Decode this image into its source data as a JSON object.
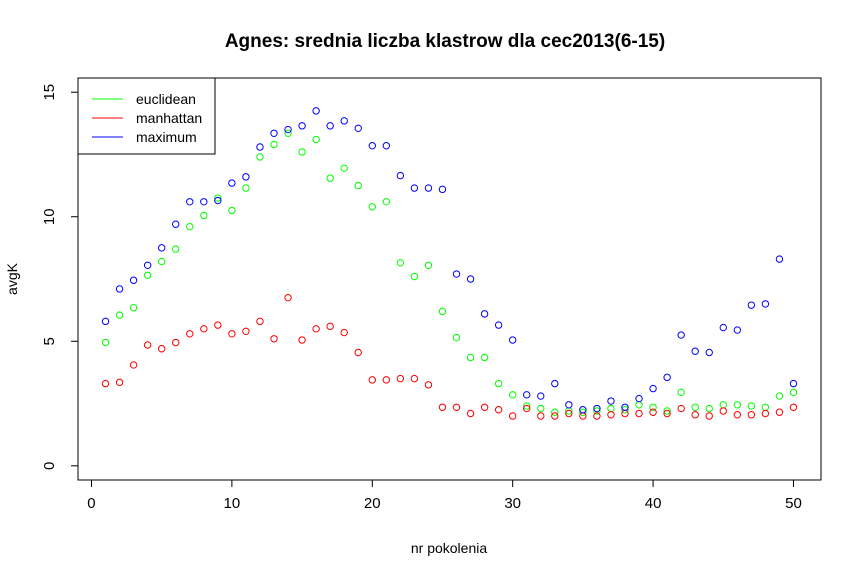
{
  "chart_data": {
    "type": "scatter",
    "title": "Agnes: srednia liczba klastrow dla cec2013(6-15)",
    "xlabel": "nr pokolenia",
    "ylabel": "avgK",
    "xlim": [
      -0.96,
      51.96
    ],
    "ylim": [
      -0.57,
      15.57
    ],
    "xticks": [
      0,
      10,
      20,
      30,
      40,
      50
    ],
    "yticks": [
      0,
      5,
      10,
      15
    ],
    "legend_position": "top-left",
    "series": [
      {
        "name": "euclidean",
        "color": "#00ff00",
        "x": [
          1,
          2,
          3,
          4,
          5,
          6,
          7,
          8,
          9,
          10,
          11,
          12,
          13,
          14,
          15,
          16,
          17,
          18,
          19,
          20,
          21,
          22,
          23,
          24,
          25,
          26,
          27,
          28,
          29,
          30,
          31,
          32,
          33,
          34,
          35,
          36,
          37,
          38,
          39,
          40,
          41,
          42,
          43,
          44,
          45,
          46,
          47,
          48,
          49,
          50
        ],
        "y": [
          4.95,
          6.05,
          6.35,
          7.65,
          8.2,
          8.7,
          9.6,
          10.05,
          10.75,
          10.25,
          11.15,
          12.4,
          12.9,
          13.35,
          12.6,
          13.1,
          11.55,
          11.95,
          11.25,
          10.4,
          10.6,
          8.15,
          7.6,
          8.05,
          6.2,
          5.15,
          4.35,
          4.35,
          3.3,
          2.85,
          2.4,
          2.3,
          2.15,
          2.2,
          2.15,
          2.2,
          2.3,
          2.25,
          2.45,
          2.35,
          2.2,
          2.95,
          2.35,
          2.3,
          2.45,
          2.45,
          2.4,
          2.35,
          2.8,
          2.95
        ]
      },
      {
        "name": "manhattan",
        "color": "#ff0000",
        "x": [
          1,
          2,
          3,
          4,
          5,
          6,
          7,
          8,
          9,
          10,
          11,
          12,
          13,
          14,
          15,
          16,
          17,
          18,
          19,
          20,
          21,
          22,
          23,
          24,
          25,
          26,
          27,
          28,
          29,
          30,
          31,
          32,
          33,
          34,
          35,
          36,
          37,
          38,
          39,
          40,
          41,
          42,
          43,
          44,
          45,
          46,
          47,
          48,
          49,
          50
        ],
        "y": [
          3.3,
          3.35,
          4.05,
          4.85,
          4.7,
          4.95,
          5.3,
          5.5,
          5.65,
          5.3,
          5.4,
          5.8,
          5.1,
          6.75,
          5.05,
          5.5,
          5.6,
          5.35,
          4.55,
          3.45,
          3.45,
          3.5,
          3.5,
          3.25,
          2.35,
          2.35,
          2.1,
          2.35,
          2.25,
          2.0,
          2.3,
          2.0,
          2.0,
          2.1,
          2.0,
          2.0,
          2.05,
          2.1,
          2.1,
          2.15,
          2.1,
          2.3,
          2.05,
          2.0,
          2.2,
          2.05,
          2.05,
          2.1,
          2.15,
          2.35
        ]
      },
      {
        "name": "maximum",
        "color": "#0000ff",
        "x": [
          1,
          2,
          3,
          4,
          5,
          6,
          7,
          8,
          9,
          10,
          11,
          12,
          13,
          14,
          15,
          16,
          17,
          18,
          19,
          20,
          21,
          22,
          23,
          24,
          25,
          26,
          27,
          28,
          29,
          30,
          31,
          32,
          33,
          34,
          35,
          36,
          37,
          38,
          39,
          40,
          41,
          42,
          43,
          44,
          45,
          46,
          47,
          48,
          49,
          50
        ],
        "y": [
          5.8,
          7.1,
          7.45,
          8.05,
          8.75,
          9.7,
          10.6,
          10.6,
          10.65,
          11.35,
          11.6,
          12.8,
          13.35,
          13.5,
          13.65,
          14.25,
          13.65,
          13.85,
          13.55,
          12.85,
          12.85,
          11.65,
          11.15,
          11.15,
          11.1,
          7.7,
          7.5,
          6.1,
          5.65,
          5.05,
          2.85,
          2.8,
          3.3,
          2.45,
          2.25,
          2.3,
          2.6,
          2.35,
          2.7,
          3.1,
          3.55,
          5.25,
          4.6,
          4.55,
          5.55,
          5.45,
          6.45,
          6.5,
          8.3,
          3.3
        ]
      }
    ]
  }
}
